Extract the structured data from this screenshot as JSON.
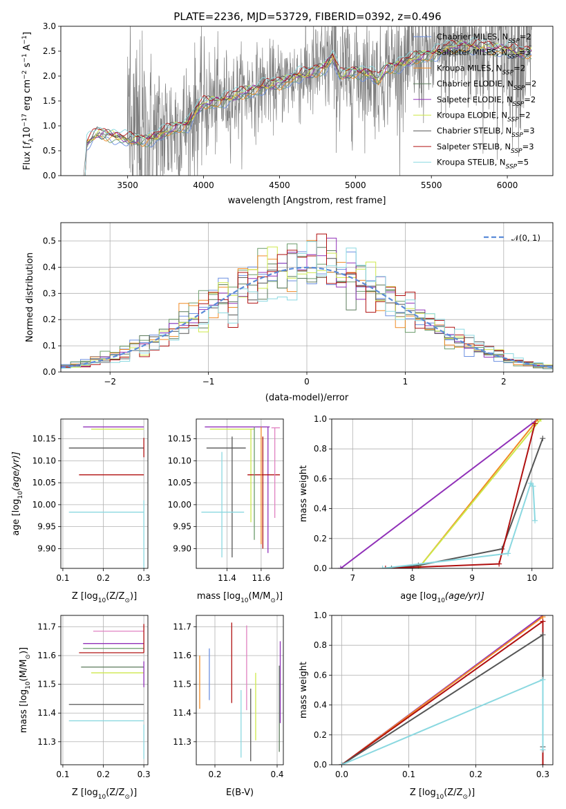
{
  "title": "PLATE=2236, MJD=53729, FIBERID=0392, z=0.496",
  "colors": {
    "Chabrier MILES": "#6b8fe0",
    "Salpeter MILES": "#6b9c6b",
    "Kroupa MILES": "#f08a24",
    "Chabrier ELODIE": "#5a7a5a",
    "Salpeter ELODIE": "#9030b8",
    "Kroupa ELODIE": "#cde84a",
    "Chabrier STELIB": "#555555",
    "Salpeter STELIB": "#b01010",
    "Kroupa STELIB": "#8ad8e0",
    "data": "#808080",
    "pink": "#e080c0",
    "grid": "#b0b0b0",
    "normal": "#5b8bd8"
  },
  "chart_data": [
    {
      "type": "line",
      "panel": "spectrum",
      "title": "PLATE=2236, MJD=53729, FIBERID=0392, z=0.496",
      "xlabel": "wavelength [Angstrom, rest frame]",
      "ylabel_pre": "Flux [",
      "ylabel_f": "f",
      "ylabel_sub": "λ",
      "ylabel_mid": "10",
      "ylabel_exp1": "−17",
      "ylabel_mid2": " erg cm",
      "ylabel_exp2": "−2",
      "ylabel_mid3": " s",
      "ylabel_exp3": "−1",
      "ylabel_mid4": " A",
      "ylabel_exp4": "−1",
      "ylabel_end": "]",
      "xlim": [
        3060,
        6300
      ],
      "ylim": [
        0,
        3.0
      ],
      "xticks": [
        3500,
        4000,
        4500,
        5000,
        5500,
        6000
      ],
      "yticks": [
        "0.0",
        "0.5",
        "1.0",
        "1.5",
        "2.0",
        "2.5",
        "3.0"
      ],
      "grid": false,
      "legend_position": "top-right",
      "legend": [
        {
          "label": "Chabrier MILES, N",
          "sub": "SSP",
          "post": "=2",
          "color_key": "Chabrier MILES"
        },
        {
          "label": "Salpeter MILES, N",
          "sub": "SSP",
          "post": "=3",
          "color_key": "Salpeter MILES"
        },
        {
          "label": "Kroupa MILES, N",
          "sub": "SSP",
          "post": "=2",
          "color_key": "Kroupa MILES"
        },
        {
          "label": "Chabrier ELODIE, N",
          "sub": "SSP",
          "post": "=2",
          "color_key": "Chabrier ELODIE"
        },
        {
          "label": "Salpeter ELODIE, N",
          "sub": "SSP",
          "post": "=2",
          "color_key": "Salpeter ELODIE"
        },
        {
          "label": "Kroupa ELODIE, N",
          "sub": "SSP",
          "post": "=2",
          "color_key": "Kroupa ELODIE"
        },
        {
          "label": "Chabrier STELIB, N",
          "sub": "SSP",
          "post": "=3",
          "color_key": "Chabrier STELIB"
        },
        {
          "label": "Salpeter STELIB, N",
          "sub": "SSP",
          "post": "=3",
          "color_key": "Salpeter STELIB"
        },
        {
          "label": "Kroupa STELIB, N",
          "sub": "SSP",
          "post": "=5",
          "color_key": "Kroupa STELIB"
        }
      ],
      "model_continuum": {
        "x": [
          3210,
          3230,
          3300,
          3400,
          3500,
          3600,
          3700,
          3800,
          3900,
          3950,
          4000,
          4100,
          4200,
          4300,
          4400,
          4500,
          4600,
          4700,
          4800,
          4850,
          4900,
          5000,
          5100,
          5150,
          5200,
          5300,
          5400,
          5500,
          5600,
          5700,
          5800,
          5900,
          6000,
          6100,
          6150
        ],
        "y": [
          0.0,
          0.65,
          0.85,
          0.82,
          0.72,
          0.72,
          0.8,
          0.95,
          1.05,
          1.3,
          1.45,
          1.5,
          1.6,
          1.7,
          1.8,
          1.85,
          2.0,
          2.05,
          2.2,
          2.4,
          2.0,
          2.1,
          2.05,
          1.9,
          2.15,
          2.25,
          2.35,
          2.45,
          2.55,
          2.6,
          2.6,
          2.55,
          2.55,
          2.45,
          2.5
        ]
      },
      "data_envelope": {
        "x": [
          3500,
          3600,
          3700,
          3800,
          3900,
          4000,
          4100,
          4200,
          4300,
          4400,
          4500,
          4600,
          4700,
          4800,
          4900,
          5000,
          5100,
          5200,
          5300,
          5400,
          5500,
          5600,
          5700,
          5800,
          5900,
          6000,
          6100,
          6150
        ],
        "sigma": [
          1.2,
          1.0,
          0.8,
          0.7,
          0.65,
          0.6,
          0.5,
          0.45,
          0.45,
          0.4,
          0.4,
          0.45,
          0.5,
          0.55,
          0.7,
          0.6,
          0.55,
          0.55,
          0.6,
          0.6,
          0.6,
          0.65,
          0.7,
          0.75,
          0.75,
          0.8,
          0.8,
          0.8
        ]
      }
    },
    {
      "type": "step",
      "panel": "residual-histogram",
      "xlabel": "(data-model)/error",
      "ylabel": "Normed distribution",
      "xlim": [
        -2.5,
        2.5
      ],
      "ylim": [
        0,
        0.57
      ],
      "xticks": [
        "−2",
        "−1",
        "0",
        "1",
        "2"
      ],
      "yticks": [
        "0.0",
        "0.1",
        "0.2",
        "0.3",
        "0.4",
        "0.5"
      ],
      "grid": true,
      "legend_position": "top-right",
      "legend": [
        {
          "label": "𝒩(0, 1)",
          "color_key": "normal",
          "style": "dashed"
        }
      ],
      "bin_width": 0.1,
      "series_peaks": [
        0.54,
        0.52,
        0.51,
        0.5,
        0.52,
        0.49,
        0.5,
        0.53,
        0.51
      ]
    },
    {
      "type": "errorbar",
      "panel": "age-vs-Z",
      "xlabel_pre": "Z [log",
      "xlabel_sub": "10",
      "xlabel_post": "(Z/Z",
      "xlabel_sun": "⊙",
      "xlabel_end": ")]",
      "ylabel_pre": "age  [log",
      "ylabel_sub": "10",
      "ylabel_post": "(age/yr)]",
      "xlim": [
        0.095,
        0.31
      ],
      "ylim": [
        9.855,
        10.195
      ],
      "xticks": [
        "0.1",
        "0.2",
        "0.3"
      ],
      "yticks": [
        "9.90",
        "9.95",
        "10.00",
        "10.05",
        "10.10",
        "10.15"
      ],
      "grid": true,
      "points": [
        {
          "color_key": "Salpeter ELODIE",
          "x": 0.3,
          "xerr_low": 0.15,
          "y": 10.177,
          "yerr": 0.0
        },
        {
          "color_key": "Kroupa ELODIE",
          "x": 0.3,
          "xerr_low": 0.13,
          "y": 10.172,
          "yerr": 0.0
        },
        {
          "color_key": "Chabrier STELIB",
          "x": 0.3,
          "xerr_low": 0.185,
          "y": 10.129,
          "yerr": 0.0
        },
        {
          "color_key": "Salpeter STELIB",
          "x": 0.3,
          "xerr_low": 0.16,
          "y": 10.068,
          "yerr": 0.0
        },
        {
          "color_key": "Kroupa STELIB",
          "x": 0.3,
          "xerr_low": 0.185,
          "y": 9.983,
          "yerr": 0.0
        },
        {
          "color_key": "Salpeter STELIB",
          "x": 0.3,
          "xerr_low": 0.0,
          "y": 10.13,
          "yerr": 0.022
        },
        {
          "color_key": "Kroupa STELIB",
          "x": 0.3,
          "xerr_low": 0.0,
          "y": 9.93,
          "yerr": 0.08
        }
      ]
    },
    {
      "type": "errorbar",
      "panel": "age-vs-mass",
      "xlabel_pre": "mass [log",
      "xlabel_sub": "10",
      "xlabel_post": "(M/M",
      "xlabel_sun": "⊙",
      "xlabel_end": ")]",
      "xlim": [
        11.22,
        11.73
      ],
      "ylim": [
        9.855,
        10.195
      ],
      "xticks": [
        "11.4",
        "11.6"
      ],
      "yticks": [
        "9.90",
        "9.95",
        "10.00",
        "10.05",
        "10.10",
        "10.15"
      ],
      "grid": true,
      "points": [
        {
          "color_key": "Salpeter ELODIE",
          "x": 11.64,
          "xlo": 11.27,
          "xhi": 11.65,
          "y": 10.177,
          "ylo": 9.89,
          "yhi": 10.177
        },
        {
          "color_key": "Kroupa ELODIE",
          "x": 11.54,
          "xlo": 11.3,
          "xhi": 11.56,
          "y": 10.172,
          "ylo": 9.96,
          "yhi": 10.172
        },
        {
          "color_key": "Chabrier STELIB",
          "x": 11.43,
          "xlo": 11.28,
          "xhi": 11.51,
          "y": 10.129,
          "ylo": 9.88,
          "yhi": 10.155
        },
        {
          "color_key": "Salpeter STELIB",
          "x": 11.61,
          "xlo": 11.52,
          "xhi": 11.71,
          "y": 10.068,
          "ylo": 9.9,
          "yhi": 10.155
        },
        {
          "color_key": "Kroupa STELIB",
          "x": 11.37,
          "xlo": 11.25,
          "xhi": 11.5,
          "y": 9.983,
          "ylo": 9.88,
          "yhi": 10.12
        },
        {
          "color_key": "Salpeter MILES",
          "x": 11.56,
          "xlo": 11.56,
          "xhi": 11.56,
          "y": 10.177,
          "ylo": 9.92,
          "yhi": 10.177
        },
        {
          "color_key": "pink",
          "x": 11.68,
          "xlo": 11.66,
          "xhi": 11.71,
          "y": 10.175,
          "ylo": 9.97,
          "yhi": 10.175
        },
        {
          "color_key": "Kroupa MILES",
          "x": 11.6,
          "xlo": 11.6,
          "xhi": 11.6,
          "y": 10.177,
          "ylo": 9.91,
          "yhi": 10.177
        }
      ]
    },
    {
      "type": "line",
      "panel": "cumulative-mass-weight-vs-age",
      "xlabel_pre": "age  [log",
      "xlabel_sub": "10",
      "xlabel_post": "(age/yr)]",
      "ylabel": "mass weight",
      "xlim": [
        6.65,
        10.35
      ],
      "ylim": [
        0,
        1.0
      ],
      "xticks": [
        "7",
        "8",
        "9",
        "10"
      ],
      "yticks": [
        "0.0",
        "0.2",
        "0.4",
        "0.6",
        "0.8",
        "1.0"
      ],
      "grid": true,
      "series": [
        {
          "color_key": "Salpeter ELODIE",
          "x": [
            6.8,
            10.1
          ],
          "y": [
            0.0,
            1.0
          ]
        },
        {
          "color_key": "Kroupa MILES",
          "x": [
            8.1,
            10.1
          ],
          "y": [
            0.0,
            1.0
          ]
        },
        {
          "color_key": "Kroupa ELODIE",
          "x": [
            8.1,
            10.15
          ],
          "y": [
            0.0,
            1.0
          ]
        },
        {
          "color_key": "Chabrier STELIB",
          "x": [
            7.65,
            8.1,
            9.5,
            10.18
          ],
          "y": [
            0.0,
            0.02,
            0.13,
            0.87
          ]
        },
        {
          "color_key": "Salpeter STELIB",
          "x": [
            7.55,
            9.45,
            10.05
          ],
          "y": [
            0.0,
            0.03,
            0.97
          ]
        },
        {
          "color_key": "Kroupa STELIB",
          "x": [
            7.5,
            9.6,
            9.98,
            10.02,
            10.05
          ],
          "y": [
            0.0,
            0.1,
            0.57,
            0.55,
            0.32
          ]
        }
      ]
    },
    {
      "type": "errorbar",
      "panel": "mass-vs-Z",
      "xlabel_pre": "Z [log",
      "xlabel_sub": "10",
      "xlabel_post": "(Z/Z",
      "xlabel_sun": "⊙",
      "xlabel_end": ")]",
      "ylabel_pre": "mass [log",
      "ylabel_sub": "10",
      "ylabel_post": "(M/M",
      "ylabel_sun": "⊙",
      "ylabel_end": ")]",
      "xlim": [
        0.095,
        0.31
      ],
      "ylim": [
        11.22,
        11.74
      ],
      "xticks": [
        "0.1",
        "0.2",
        "0.3"
      ],
      "yticks": [
        "11.3",
        "11.4",
        "11.5",
        "11.6",
        "11.7"
      ],
      "grid": true,
      "points": [
        {
          "color_key": "pink",
          "x": 0.3,
          "xerr_low": 0.125,
          "y": 11.685
        },
        {
          "color_key": "Salpeter ELODIE",
          "x": 0.3,
          "xerr_low": 0.15,
          "y": 11.642
        },
        {
          "color_key": "Salpeter MILES",
          "x": 0.3,
          "xerr_low": 0.15,
          "y": 11.625
        },
        {
          "color_key": "Salpeter STELIB",
          "x": 0.3,
          "xerr_low": 0.16,
          "y": 11.61
        },
        {
          "color_key": "Chabrier ELODIE",
          "x": 0.3,
          "xerr_low": 0.155,
          "y": 11.56
        },
        {
          "color_key": "Kroupa ELODIE",
          "x": 0.3,
          "xerr_low": 0.13,
          "y": 11.54
        },
        {
          "color_key": "Chabrier STELIB",
          "x": 0.3,
          "xerr_low": 0.185,
          "y": 11.43
        },
        {
          "color_key": "Kroupa STELIB",
          "x": 0.3,
          "xerr_low": 0.185,
          "y": 11.373
        }
      ]
    },
    {
      "type": "errorbar",
      "panel": "mass-vs-EBV",
      "xlabel": "E(B-V)",
      "xlim": [
        0.14,
        0.42
      ],
      "ylim": [
        11.22,
        11.74
      ],
      "xticks": [
        "0.2",
        "0.4"
      ],
      "yticks": [
        "11.3",
        "11.4",
        "11.5",
        "11.6",
        "11.7"
      ],
      "grid": true,
      "points": [
        {
          "color_key": "Kroupa MILES",
          "x": 0.151,
          "ylo": 11.415,
          "yhi": 11.6
        },
        {
          "color_key": "Chabrier MILES",
          "x": 0.182,
          "ylo": 11.445,
          "yhi": 11.625
        },
        {
          "color_key": "Salpeter STELIB",
          "x": 0.254,
          "ylo": 11.435,
          "yhi": 11.715
        },
        {
          "color_key": "Kroupa STELIB",
          "x": 0.284,
          "ylo": 11.245,
          "yhi": 11.48
        },
        {
          "color_key": "pink",
          "x": 0.302,
          "ylo": 11.41,
          "yhi": 11.705
        },
        {
          "color_key": "Chabrier STELIB",
          "x": 0.315,
          "ylo": 11.232,
          "yhi": 11.485
        },
        {
          "color_key": "Kroupa ELODIE",
          "x": 0.331,
          "ylo": 11.305,
          "yhi": 11.54
        },
        {
          "color_key": "Chabrier ELODIE",
          "x": 0.407,
          "ylo": 11.265,
          "yhi": 11.565
        },
        {
          "color_key": "Salpeter ELODIE",
          "x": 0.41,
          "ylo": 11.365,
          "yhi": 11.65
        }
      ]
    },
    {
      "type": "line",
      "panel": "cumulative-mass-weight-vs-Z",
      "xlabel_pre": "Z [log",
      "xlabel_sub": "10",
      "xlabel_post": "(Z/Z",
      "xlabel_sun": "⊙",
      "xlabel_end": ")]",
      "ylabel": "mass weight",
      "xlim": [
        -0.015,
        0.315
      ],
      "ylim": [
        0,
        1.0
      ],
      "xticks": [
        "0.0",
        "0.1",
        "0.2",
        "0.3"
      ],
      "yticks": [
        "0.0",
        "0.2",
        "0.4",
        "0.6",
        "0.8",
        "1.0"
      ],
      "grid": true,
      "series": [
        {
          "color_key": "Salpeter ELODIE",
          "x": [
            0.0,
            0.3
          ],
          "y": [
            0.0,
            1.0
          ]
        },
        {
          "color_key": "Kroupa MILES",
          "x": [
            0.0,
            0.3
          ],
          "y": [
            0.0,
            0.99
          ]
        },
        {
          "color_key": "Salpeter STELIB",
          "x": [
            0.0,
            0.3,
            0.3
          ],
          "y": [
            0.0,
            0.96,
            0.0
          ]
        },
        {
          "color_key": "Chabrier STELIB",
          "x": [
            0.0,
            0.3,
            0.3
          ],
          "y": [
            0.0,
            0.87,
            0.12
          ]
        },
        {
          "color_key": "Kroupa STELIB",
          "x": [
            0.0,
            0.3,
            0.3
          ],
          "y": [
            0.0,
            0.57,
            0.1
          ]
        }
      ]
    }
  ]
}
